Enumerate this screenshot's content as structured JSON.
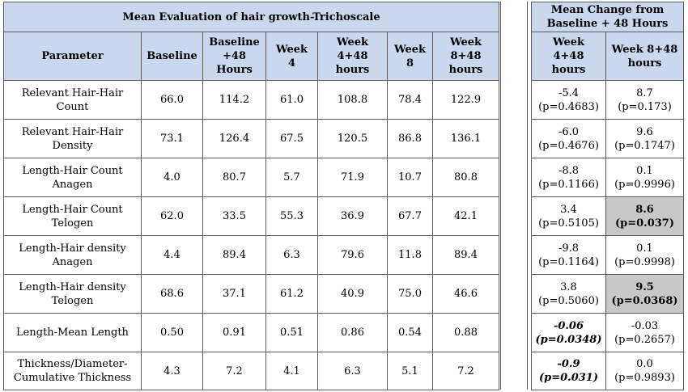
{
  "left_table": {
    "title": "Mean Evaluation of hair growth-Trichoscale",
    "headers": [
      "Parameter",
      "Baseline",
      "Baseline\n+48\nHours",
      "Week\n4",
      "Week\n4+48\nhours",
      "Week\n8",
      "Week\n8+48\nhours"
    ],
    "rows": [
      {
        "param": "Relevant Hair-Hair Count",
        "values": [
          "66.0",
          "114.2",
          "61.0",
          "108.8",
          "78.4",
          "122.9"
        ]
      },
      {
        "param": "Relevant Hair-Hair Density",
        "values": [
          "73.1",
          "126.4",
          "67.5",
          "120.5",
          "86.8",
          "136.1"
        ]
      },
      {
        "param": "Length-Hair Count Anagen",
        "values": [
          "4.0",
          "80.7",
          "5.7",
          "71.9",
          "10.7",
          "80.8"
        ]
      },
      {
        "param": "Length-Hair Count Telogen",
        "values": [
          "62.0",
          "33.5",
          "55.3",
          "36.9",
          "67.7",
          "42.1"
        ]
      },
      {
        "param": "Length-Hair density Anagen",
        "values": [
          "4.4",
          "89.4",
          "6.3",
          "79.6",
          "11.8",
          "89.4"
        ]
      },
      {
        "param": "Length-Hair density Telogen",
        "values": [
          "68.6",
          "37.1",
          "61.2",
          "40.9",
          "75.0",
          "46.6"
        ]
      },
      {
        "param": "Length-Mean Length",
        "values": [
          "0.50",
          "0.91",
          "0.51",
          "0.86",
          "0.54",
          "0.88"
        ]
      },
      {
        "param": "Thickness/Diameter-Cumulative Thickness",
        "values": [
          "4.3",
          "7.2",
          "4.1",
          "6.3",
          "5.1",
          "7.2"
        ]
      }
    ]
  },
  "right_table": {
    "title": "Mean Change from Baseline + 48 Hours",
    "headers": [
      "Week\n4+48\nhours",
      "Week 8+48\nhours"
    ],
    "rows": [
      [
        {
          "v": "-5.4",
          "p": "(p=0.4683)"
        },
        {
          "v": "8.7",
          "p": "(p=0.173)"
        }
      ],
      [
        {
          "v": "-6.0",
          "p": "(p=0.4676)"
        },
        {
          "v": "9.6",
          "p": "(p=0.1747)"
        }
      ],
      [
        {
          "v": "-8.8",
          "p": "(p=0.1166)"
        },
        {
          "v": "0.1",
          "p": "(p=0.9996)"
        }
      ],
      [
        {
          "v": "3.4",
          "p": "(p=0.5105)"
        },
        {
          "v": "8.6",
          "p": "(p=0.037)",
          "style": "gray-bold"
        }
      ],
      [
        {
          "v": "-9.8",
          "p": "(p=0.1164)"
        },
        {
          "v": "0.1",
          "p": "(p=0.9998)"
        }
      ],
      [
        {
          "v": "3.8",
          "p": "(p=0.5060)"
        },
        {
          "v": "9.5",
          "p": "(p=0.0368)",
          "style": "gray-bold"
        }
      ],
      [
        {
          "v": "-0.06",
          "p": "(p=0.0348)",
          "style": "bold-italic"
        },
        {
          "v": "-0.03",
          "p": "(p=0.2657)"
        }
      ],
      [
        {
          "v": "-0.9",
          "p": "(p=0.031)",
          "style": "bold-italic"
        },
        {
          "v": "0.0",
          "p": "(p=0.9893)"
        }
      ]
    ]
  }
}
